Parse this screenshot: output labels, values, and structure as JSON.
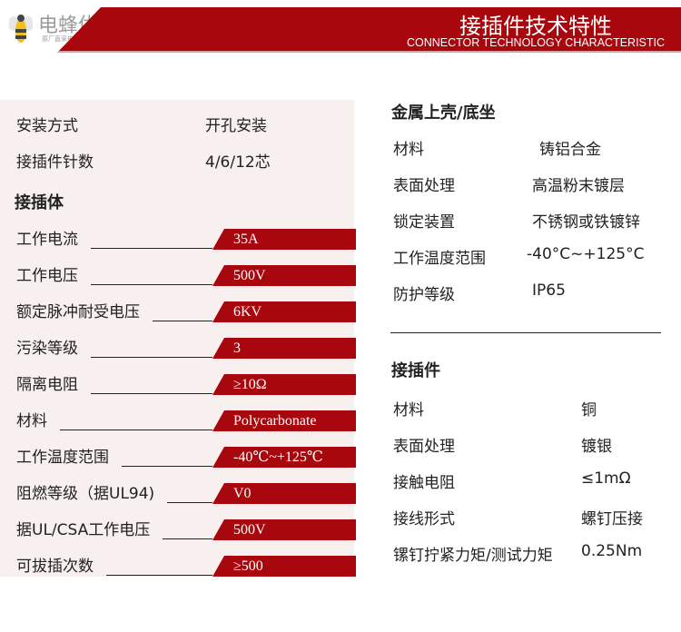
{
  "logo": {
    "name": "电蜂优选",
    "tagline": "原厂直采电子元器件商城"
  },
  "banner": {
    "title": "接插件技术特性",
    "subtitle": "CONNECTOR TECHNOLOGY CHARACTERISTIC",
    "color": "#a8070d"
  },
  "left": {
    "basic": [
      {
        "label": "安装方式",
        "value": "开孔安装"
      },
      {
        "label": "接插件针数",
        "value": "4/6/12芯"
      }
    ],
    "section_title": "接插体",
    "specs": [
      {
        "label": "工作电流",
        "value": "35A"
      },
      {
        "label": "工作电压",
        "value": "500V"
      },
      {
        "label": "额定脉冲耐受电压",
        "value": "6KV"
      },
      {
        "label": "污染等级",
        "value": "3"
      },
      {
        "label": "隔离电阻",
        "value": "≥10Ω"
      },
      {
        "label": "材料",
        "value": "Polycarbonate"
      },
      {
        "label": "工作温度范围",
        "value": "-40℃~+125℃"
      },
      {
        "label": "阻燃等级（据UL94)",
        "value": "V0"
      },
      {
        "label": "据UL/CSA工作电压",
        "value": "500V"
      },
      {
        "label": "可拔插次数",
        "value": "≥500"
      }
    ]
  },
  "right": {
    "shell": {
      "title": "金属上壳/底坐",
      "items": [
        {
          "label": "材料",
          "value": "铸铝合金"
        },
        {
          "label": "表面处理",
          "value": "高温粉末镀层"
        },
        {
          "label": "锁定装置",
          "value": "不锈钢或铁镀锌"
        },
        {
          "label": "工作温度范围",
          "value": "-40°C~+125°C"
        },
        {
          "label": "防护等级",
          "value": "IP65"
        }
      ]
    },
    "contact": {
      "title": "接插件",
      "items": [
        {
          "label": "材料",
          "value": "铜"
        },
        {
          "label": "表面处理",
          "value": "镀银"
        },
        {
          "label": "接触电阻",
          "value": "≤1mΩ"
        },
        {
          "label": "接线形式",
          "value": "螺钉压接"
        },
        {
          "label": "镙钉拧紧力矩/测试力矩",
          "value": "0.25Nm"
        }
      ]
    }
  }
}
